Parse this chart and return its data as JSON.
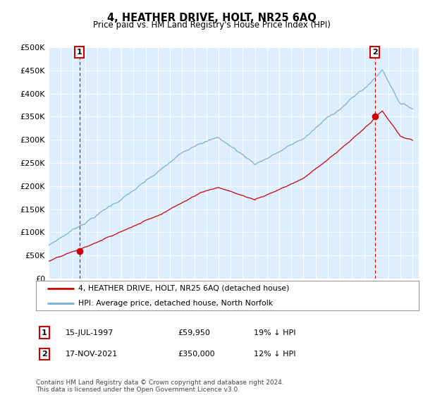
{
  "title": "4, HEATHER DRIVE, HOLT, NR25 6AQ",
  "subtitle": "Price paid vs. HM Land Registry's House Price Index (HPI)",
  "ylabel_ticks": [
    "£0",
    "£50K",
    "£100K",
    "£150K",
    "£200K",
    "£250K",
    "£300K",
    "£350K",
    "£400K",
    "£450K",
    "£500K"
  ],
  "ylim": [
    0,
    500000
  ],
  "xlim_start": 1995.0,
  "xlim_end": 2025.5,
  "sale1_date": 1997.54,
  "sale1_price": 59950,
  "sale1_label": "1",
  "sale2_date": 2021.88,
  "sale2_price": 350000,
  "sale2_label": "2",
  "hpi_color": "#7bafd4",
  "price_color": "#cc0000",
  "plot_bg_color": "#ddeeff",
  "legend_label1": "4, HEATHER DRIVE, HOLT, NR25 6AQ (detached house)",
  "legend_label2": "HPI: Average price, detached house, North Norfolk",
  "table_row1": [
    "1",
    "15-JUL-1997",
    "£59,950",
    "19% ↓ HPI"
  ],
  "table_row2": [
    "2",
    "17-NOV-2021",
    "£350,000",
    "12% ↓ HPI"
  ],
  "footnote": "Contains HM Land Registry data © Crown copyright and database right 2024.\nThis data is licensed under the Open Government Licence v3.0.",
  "background_color": "#ffffff",
  "grid_color": "#ffffff"
}
